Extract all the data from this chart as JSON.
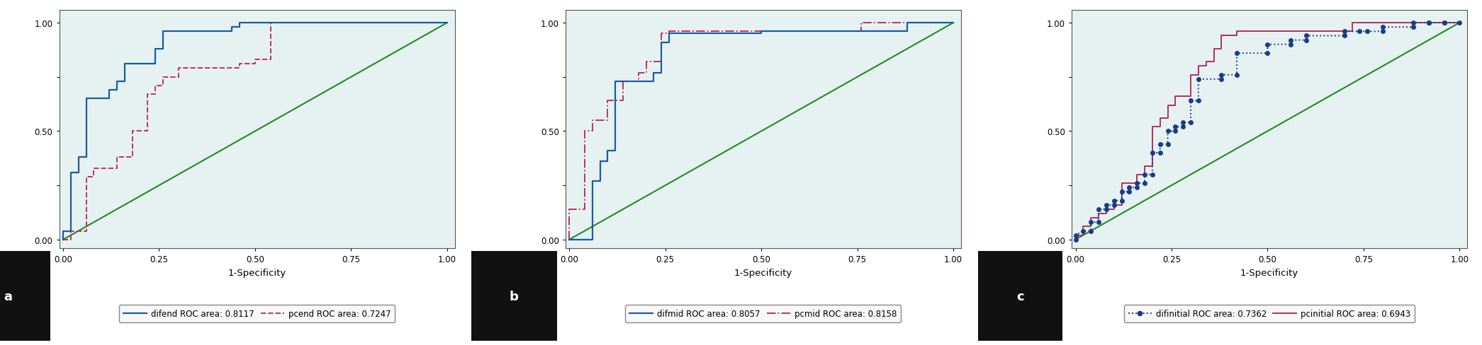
{
  "background_color": "#e6f2f2",
  "plot_bg_color": "#e6f2f2",
  "outer_bg": "#ffffff",
  "border_color": "#555555",
  "diagonal_color": "#228B22",
  "tick_fontsize": 8.5,
  "label_fontsize": 9.5,
  "legend_fontsize": 8.5,
  "panels": [
    {
      "label": "a",
      "curve1": {
        "name": "difend ROC area: 0.8117",
        "color": "#1a5ca0",
        "linestyle": "solid",
        "linewidth": 1.6,
        "marker": null,
        "x": [
          0.0,
          0.0,
          0.02,
          0.02,
          0.04,
          0.04,
          0.06,
          0.06,
          0.12,
          0.12,
          0.14,
          0.14,
          0.16,
          0.16,
          0.24,
          0.24,
          0.26,
          0.26,
          0.44,
          0.44,
          0.46,
          0.46,
          0.5,
          0.5,
          0.96,
          0.96,
          1.0
        ],
        "y": [
          0.0,
          0.04,
          0.04,
          0.31,
          0.31,
          0.38,
          0.38,
          0.65,
          0.65,
          0.69,
          0.69,
          0.73,
          0.73,
          0.81,
          0.81,
          0.88,
          0.88,
          0.96,
          0.96,
          0.98,
          0.98,
          1.0,
          1.0,
          1.0,
          1.0,
          1.0,
          1.0
        ]
      },
      "curve2": {
        "name": "pcend ROC area: 0.7247",
        "color": "#c03060",
        "linestyle": "dashed",
        "linewidth": 1.4,
        "marker": null,
        "x": [
          0.0,
          0.0,
          0.02,
          0.02,
          0.06,
          0.06,
          0.08,
          0.08,
          0.14,
          0.14,
          0.18,
          0.18,
          0.22,
          0.22,
          0.24,
          0.24,
          0.26,
          0.26,
          0.3,
          0.3,
          0.46,
          0.46,
          0.5,
          0.5,
          0.54,
          0.54,
          0.76,
          0.76,
          0.8,
          0.8,
          1.0
        ],
        "y": [
          0.0,
          0.0,
          0.0,
          0.04,
          0.04,
          0.29,
          0.29,
          0.33,
          0.33,
          0.38,
          0.38,
          0.5,
          0.5,
          0.67,
          0.67,
          0.71,
          0.71,
          0.75,
          0.75,
          0.79,
          0.79,
          0.81,
          0.81,
          0.83,
          0.83,
          1.0,
          1.0,
          1.0,
          1.0,
          1.0,
          1.0
        ]
      },
      "xlabel": "1-Specificity",
      "xticks": [
        0.0,
        0.25,
        0.5,
        0.75,
        1.0
      ],
      "yticks": [
        0.0,
        0.25,
        0.5,
        0.75,
        1.0
      ],
      "ytick_labels": [
        "0.00",
        "",
        "0.50",
        "",
        "1.00"
      ],
      "xlim": [
        -0.01,
        1.02
      ],
      "ylim": [
        -0.04,
        1.06
      ]
    },
    {
      "label": "b",
      "curve1": {
        "name": "difmid ROC area: 0.8057",
        "color": "#1a5ca0",
        "linestyle": "solid",
        "linewidth": 1.6,
        "marker": null,
        "x": [
          0.0,
          0.0,
          0.06,
          0.06,
          0.08,
          0.08,
          0.1,
          0.1,
          0.12,
          0.12,
          0.22,
          0.22,
          0.24,
          0.24,
          0.26,
          0.26,
          0.5,
          0.5,
          0.88,
          0.88,
          1.0
        ],
        "y": [
          0.0,
          0.0,
          0.0,
          0.27,
          0.27,
          0.36,
          0.36,
          0.41,
          0.41,
          0.73,
          0.73,
          0.77,
          0.77,
          0.91,
          0.91,
          0.95,
          0.95,
          0.96,
          0.96,
          1.0,
          1.0
        ]
      },
      "curve2": {
        "name": "pcmid ROC area: 0.8158",
        "color": "#c03060",
        "linestyle": "dashdot",
        "linewidth": 1.4,
        "marker": null,
        "x": [
          0.0,
          0.0,
          0.04,
          0.04,
          0.06,
          0.06,
          0.1,
          0.1,
          0.14,
          0.14,
          0.18,
          0.18,
          0.2,
          0.2,
          0.24,
          0.24,
          0.26,
          0.26,
          0.3,
          0.3,
          0.7,
          0.7,
          0.76,
          0.76,
          1.0
        ],
        "y": [
          0.0,
          0.14,
          0.14,
          0.5,
          0.5,
          0.55,
          0.55,
          0.64,
          0.64,
          0.73,
          0.73,
          0.77,
          0.77,
          0.82,
          0.82,
          0.95,
          0.95,
          0.96,
          0.96,
          0.96,
          0.96,
          0.96,
          0.96,
          1.0,
          1.0
        ]
      },
      "xlabel": "1-Specificity",
      "xticks": [
        0.0,
        0.25,
        0.5,
        0.75,
        1.0
      ],
      "yticks": [
        0.0,
        0.25,
        0.5,
        0.75,
        1.0
      ],
      "ytick_labels": [
        "0.00",
        "",
        "0.50",
        "",
        "1.00"
      ],
      "xlim": [
        -0.01,
        1.02
      ],
      "ylim": [
        -0.04,
        1.06
      ]
    },
    {
      "label": "c",
      "curve1": {
        "name": "difinitial ROC area: 0.7362",
        "color": "#1a3a8a",
        "linestyle": "dotted",
        "linewidth": 1.4,
        "marker": "o",
        "markersize": 4.5,
        "markerfacecolor": "#1a3a8a",
        "x": [
          0.0,
          0.0,
          0.02,
          0.04,
          0.04,
          0.06,
          0.06,
          0.08,
          0.08,
          0.1,
          0.1,
          0.12,
          0.12,
          0.14,
          0.14,
          0.16,
          0.16,
          0.18,
          0.18,
          0.2,
          0.2,
          0.22,
          0.22,
          0.24,
          0.24,
          0.26,
          0.26,
          0.28,
          0.28,
          0.3,
          0.3,
          0.32,
          0.32,
          0.38,
          0.38,
          0.42,
          0.42,
          0.5,
          0.5,
          0.56,
          0.56,
          0.6,
          0.6,
          0.7,
          0.7,
          0.74,
          0.76,
          0.8,
          0.8,
          0.88,
          0.88,
          0.92,
          0.92,
          0.96,
          0.96,
          1.0
        ],
        "y": [
          0.0,
          0.02,
          0.04,
          0.04,
          0.08,
          0.08,
          0.14,
          0.14,
          0.16,
          0.16,
          0.18,
          0.18,
          0.22,
          0.22,
          0.24,
          0.24,
          0.26,
          0.26,
          0.3,
          0.3,
          0.4,
          0.4,
          0.44,
          0.44,
          0.5,
          0.5,
          0.52,
          0.52,
          0.54,
          0.54,
          0.64,
          0.64,
          0.74,
          0.74,
          0.76,
          0.76,
          0.86,
          0.86,
          0.9,
          0.9,
          0.92,
          0.92,
          0.94,
          0.94,
          0.96,
          0.96,
          0.96,
          0.96,
          0.98,
          0.98,
          1.0,
          1.0,
          1.0,
          1.0,
          1.0,
          1.0
        ]
      },
      "curve2": {
        "name": "pcinitial ROC area: 0.6943",
        "color": "#b03060",
        "linestyle": "solid",
        "linewidth": 1.4,
        "marker": null,
        "x": [
          0.0,
          0.0,
          0.02,
          0.02,
          0.04,
          0.04,
          0.06,
          0.06,
          0.08,
          0.08,
          0.1,
          0.1,
          0.12,
          0.12,
          0.16,
          0.16,
          0.18,
          0.18,
          0.2,
          0.2,
          0.22,
          0.22,
          0.24,
          0.24,
          0.26,
          0.26,
          0.3,
          0.3,
          0.32,
          0.32,
          0.34,
          0.34,
          0.36,
          0.36,
          0.38,
          0.38,
          0.42,
          0.42,
          0.7,
          0.7,
          0.72,
          0.72,
          1.0
        ],
        "y": [
          0.0,
          0.02,
          0.02,
          0.06,
          0.06,
          0.1,
          0.1,
          0.12,
          0.12,
          0.14,
          0.14,
          0.16,
          0.16,
          0.26,
          0.26,
          0.3,
          0.3,
          0.34,
          0.34,
          0.52,
          0.52,
          0.56,
          0.56,
          0.62,
          0.62,
          0.66,
          0.66,
          0.76,
          0.76,
          0.8,
          0.8,
          0.82,
          0.82,
          0.88,
          0.88,
          0.94,
          0.94,
          0.96,
          0.96,
          0.96,
          0.96,
          1.0,
          1.0
        ]
      },
      "xlabel": "1-Specificity",
      "xticks": [
        0.0,
        0.25,
        0.5,
        0.75,
        1.0
      ],
      "yticks": [
        0.0,
        0.25,
        0.5,
        0.75,
        1.0
      ],
      "ytick_labels": [
        "0.00",
        "",
        "0.50",
        "",
        "1.00"
      ],
      "xlim": [
        -0.01,
        1.02
      ],
      "ylim": [
        -0.04,
        1.06
      ]
    }
  ],
  "diagonal": {
    "x": [
      0,
      1
    ],
    "y": [
      0,
      1
    ]
  }
}
